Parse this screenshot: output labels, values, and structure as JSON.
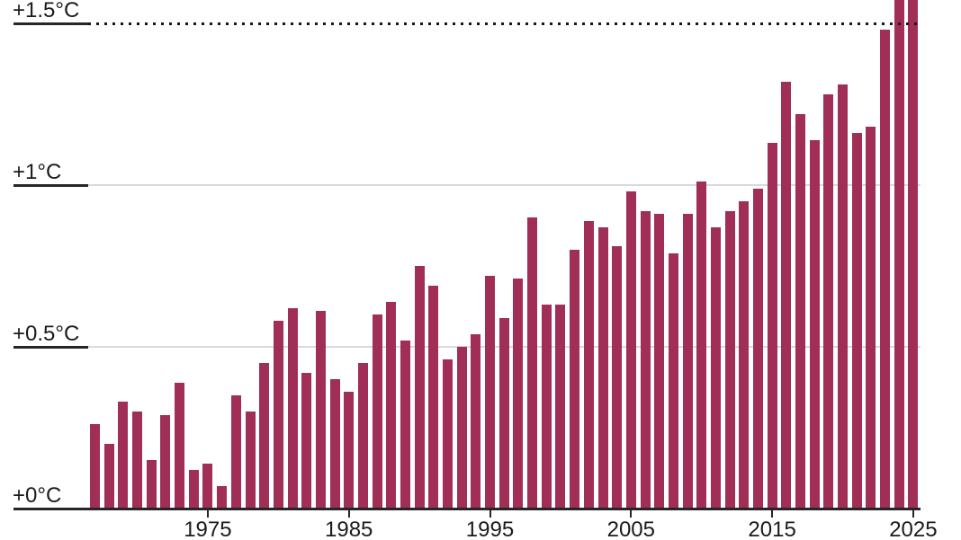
{
  "chart_data": {
    "type": "bar",
    "title": "",
    "unit": "°C",
    "ylim_visible": [
      0,
      1.57
    ],
    "grid": "horizontal",
    "legend": "none",
    "y_axis": {
      "ticks": [
        {
          "value": 0,
          "label": "+0°C"
        },
        {
          "value": 0.5,
          "label": "+0.5°C"
        },
        {
          "value": 1,
          "label": "+1°C"
        },
        {
          "value": 1.5,
          "label": "+1.5°C"
        }
      ],
      "gridlines_light": [
        0.5,
        1
      ]
    },
    "x_axis": {
      "ticks": [
        {
          "year": 1975,
          "label": "1975"
        },
        {
          "year": 1985,
          "label": "1985"
        },
        {
          "year": 1995,
          "label": "1995"
        },
        {
          "year": 2005,
          "label": "2005"
        },
        {
          "year": 2015,
          "label": "2015"
        },
        {
          "year": 2025,
          "label": "2025"
        }
      ]
    },
    "threshold": {
      "value": 1.5,
      "style": "dotted"
    },
    "years": [
      1967,
      1968,
      1969,
      1970,
      1971,
      1972,
      1973,
      1974,
      1975,
      1976,
      1977,
      1978,
      1979,
      1980,
      1981,
      1982,
      1983,
      1984,
      1985,
      1986,
      1987,
      1988,
      1989,
      1990,
      1991,
      1992,
      1993,
      1994,
      1995,
      1996,
      1997,
      1998,
      1999,
      2000,
      2001,
      2002,
      2003,
      2004,
      2005,
      2006,
      2007,
      2008,
      2009,
      2010,
      2011,
      2012,
      2013,
      2014,
      2015,
      2016,
      2017,
      2018,
      2019,
      2020,
      2021,
      2022,
      2023,
      2024,
      2025
    ],
    "values": [
      0.26,
      0.2,
      0.33,
      0.3,
      0.15,
      0.29,
      0.39,
      0.12,
      0.14,
      0.07,
      0.35,
      0.3,
      0.45,
      0.58,
      0.62,
      0.42,
      0.61,
      0.4,
      0.36,
      0.45,
      0.6,
      0.64,
      0.52,
      0.75,
      0.69,
      0.46,
      0.5,
      0.54,
      0.72,
      0.59,
      0.71,
      0.9,
      0.63,
      0.63,
      0.8,
      0.89,
      0.87,
      0.81,
      0.98,
      0.92,
      0.91,
      0.79,
      0.91,
      1.01,
      0.87,
      0.92,
      0.95,
      0.99,
      1.13,
      1.32,
      1.22,
      1.14,
      1.28,
      1.31,
      1.16,
      1.18,
      1.48,
      1.6,
      1.6
    ],
    "clipped_years": [
      2024,
      2025
    ],
    "colors": {
      "bar": "#a12e57",
      "gridline": "#d9d9d9",
      "axis": "#262626",
      "dotted_line": "#161616",
      "text": "#1b1b1b",
      "background": "#ffffff"
    }
  }
}
